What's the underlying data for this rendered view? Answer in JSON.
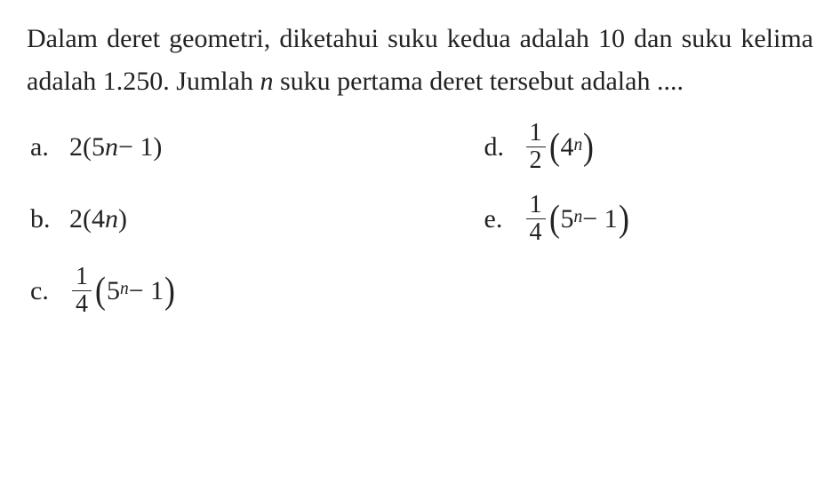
{
  "question": {
    "line": "Dalam deret geometri, diketahui suku kedua adalah 10 dan suku kelima adalah 1.250. Jumlah ",
    "var": "n",
    "line2": " suku pertama deret tersebut adalah ...."
  },
  "options": {
    "a": {
      "label": "a.",
      "expr_pre": "2(5",
      "expr_var": "n",
      "expr_post": " − 1)"
    },
    "b": {
      "label": "b.",
      "expr_pre": "2(4",
      "expr_var": "n",
      "expr_post": ")"
    },
    "c": {
      "label": "c.",
      "frac_num": "1",
      "frac_den": "4",
      "base": "5",
      "exp": "n",
      "tail": " − 1"
    },
    "d": {
      "label": "d.",
      "frac_num": "1",
      "frac_den": "2",
      "base": "4",
      "exp": "n",
      "tail": ""
    },
    "e": {
      "label": "e.",
      "frac_num": "1",
      "frac_den": "4",
      "base": "5",
      "exp": "n",
      "tail": " − 1"
    }
  },
  "styling": {
    "font_family": "Times New Roman",
    "font_size_body": 30,
    "text_color": "#222222",
    "background_color": "#ffffff",
    "fraction_rule_color": "#222222"
  }
}
